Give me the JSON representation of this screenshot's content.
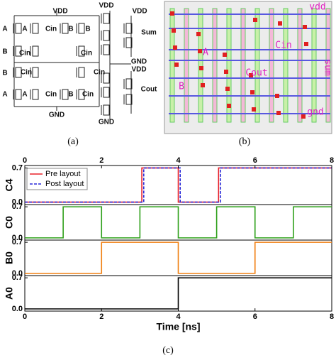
{
  "schematic": {
    "labels": [
      "VDD",
      "VDD",
      "VDD",
      "Sum",
      "GND",
      "VDD",
      "Cout",
      "GND",
      "GND",
      "A",
      "A",
      "Cin",
      "B",
      "B",
      "B",
      "Cin",
      "Cin",
      "B",
      "Cin",
      "Cin",
      "A",
      "A",
      "Cin",
      "B",
      "Cin"
    ],
    "caption": "(a)"
  },
  "layout": {
    "labels": [
      "vdd",
      "A",
      "Cin",
      "Cout",
      "B",
      "sum",
      "gnd"
    ],
    "caption": "(b)"
  },
  "waveform_caption": "(c)",
  "chart_data": [
    {
      "type": "line",
      "ylabel": "C4",
      "legend": "upper left",
      "x": [
        0,
        3.05,
        3.05,
        3.1,
        3.1,
        4.0,
        4.0,
        4.05,
        4.05,
        5.05,
        5.05,
        5.1,
        5.1,
        8
      ],
      "series": [
        {
          "name": "Pre layout",
          "color": "#e8202a",
          "linestyle": "solid",
          "values": [
            0,
            0,
            0.7,
            0.7,
            0.7,
            0.7,
            0,
            0,
            0,
            0,
            0.7,
            0.7,
            0.7,
            0.7
          ]
        },
        {
          "name": "Post layout",
          "color": "#2a2ad8",
          "linestyle": "dashed",
          "values": [
            0,
            0,
            0,
            0,
            0.7,
            0.7,
            0.7,
            0.7,
            0,
            0,
            0,
            0,
            0.7,
            0.7
          ]
        }
      ],
      "xlim": [
        0,
        8
      ],
      "xticks": [
        0,
        2,
        4,
        6,
        8
      ],
      "ylim": [
        -0.05,
        0.75
      ],
      "yticks": [
        {
          "value": 0,
          "label": "0.0"
        },
        0.7
      ]
    },
    {
      "type": "line",
      "ylabel": "C0",
      "x": [
        0,
        1,
        1,
        2,
        2,
        3,
        3,
        4,
        4,
        5,
        5,
        6,
        6,
        7,
        7,
        8
      ],
      "series": [
        {
          "color": "#2ea01a",
          "linestyle": "solid",
          "values": [
            0,
            0,
            0.7,
            0.7,
            0,
            0,
            0.7,
            0.7,
            0,
            0,
            0.7,
            0.7,
            0,
            0,
            0.7,
            0.7
          ]
        }
      ],
      "xlim": [
        0,
        8
      ],
      "ylim": [
        -0.05,
        0.75
      ],
      "yticks": [
        {
          "value": 0,
          "label": "0.0"
        },
        0.7
      ]
    },
    {
      "type": "line",
      "ylabel": "B0",
      "x": [
        0,
        2,
        2,
        4,
        4,
        6,
        6,
        8
      ],
      "series": [
        {
          "color": "#f07f10",
          "linestyle": "solid",
          "values": [
            0,
            0,
            0.7,
            0.7,
            0,
            0,
            0.7,
            0.7
          ]
        }
      ],
      "xlim": [
        0,
        8
      ],
      "ylim": [
        -0.05,
        0.75
      ],
      "yticks": [
        {
          "value": 0,
          "label": "0.0"
        },
        0.7
      ]
    },
    {
      "type": "line",
      "ylabel": "A0",
      "xlabel": "Time [ns]",
      "x": [
        0,
        4,
        4,
        8
      ],
      "series": [
        {
          "color": "#000000",
          "linestyle": "solid",
          "values": [
            0,
            0,
            0.7,
            0.7
          ]
        }
      ],
      "xlim": [
        0,
        8
      ],
      "xticks": [
        0,
        2,
        4,
        6,
        8
      ],
      "ylim": [
        -0.05,
        0.75
      ],
      "yticks": [
        {
          "value": 0,
          "label": "0.0"
        },
        0.7
      ]
    }
  ]
}
